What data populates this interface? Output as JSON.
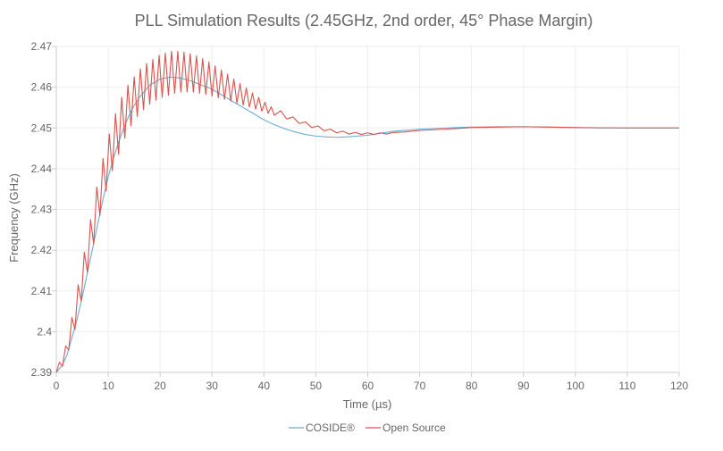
{
  "chart_data": {
    "type": "line",
    "title": "PLL Simulation Results (2.45GHz, 2nd order, 45° Phase Margin)",
    "xlabel": "Time (µs)",
    "ylabel": "Frequency (GHz)",
    "xlim": [
      0,
      120
    ],
    "ylim": [
      2.39,
      2.47
    ],
    "x_ticks": [
      "0",
      "10",
      "20",
      "30",
      "40",
      "50",
      "60",
      "70",
      "80",
      "90",
      "100",
      "110",
      "120"
    ],
    "y_ticks": [
      "2.39",
      "2.4",
      "2.41",
      "2.42",
      "2.43",
      "2.44",
      "2.45",
      "2.46",
      "2.47"
    ],
    "grid": true,
    "legend_position": "bottom",
    "series": [
      {
        "name": "COSIDE®",
        "color": "#6baed6",
        "x": [
          0,
          1,
          2,
          3,
          4,
          5,
          6,
          7,
          8,
          9,
          10,
          11,
          12,
          13,
          14,
          15,
          16,
          18,
          20,
          22,
          24,
          26,
          28,
          30,
          32,
          34,
          36,
          38,
          40,
          42,
          44,
          46,
          48,
          50,
          52,
          54,
          56,
          58,
          60,
          62,
          65,
          70,
          75,
          80,
          85,
          90,
          95,
          100,
          110,
          120
        ],
        "y": [
          2.39,
          2.3915,
          2.394,
          2.3985,
          2.403,
          2.4085,
          2.4145,
          2.4205,
          2.4265,
          2.4325,
          2.438,
          2.4425,
          2.4465,
          2.45,
          2.453,
          2.4555,
          2.4575,
          2.4605,
          2.462,
          2.4625,
          2.4622,
          2.4615,
          2.4605,
          2.4595,
          2.458,
          2.4565,
          2.455,
          2.4535,
          2.452,
          2.4508,
          2.4498,
          2.449,
          2.4484,
          2.448,
          2.4478,
          2.4477,
          2.4478,
          2.448,
          2.4482,
          2.4486,
          2.4492,
          2.4497,
          2.45,
          2.4502,
          2.4503,
          2.4503,
          2.4502,
          2.4501,
          2.45,
          2.45
        ]
      },
      {
        "name": "Open Source",
        "color": "#d9534f",
        "x": [
          0,
          0.6,
          1.2,
          1.8,
          2.4,
          3.0,
          3.6,
          4.2,
          4.8,
          5.4,
          6.0,
          6.6,
          7.2,
          7.8,
          8.4,
          9.0,
          9.6,
          10.2,
          10.8,
          11.4,
          12.0,
          12.6,
          13.2,
          13.8,
          14.4,
          15.0,
          15.6,
          16.2,
          16.8,
          17.4,
          18.0,
          18.6,
          19.2,
          19.8,
          20.4,
          21.0,
          21.6,
          22.2,
          22.8,
          23.4,
          24.0,
          24.6,
          25.2,
          25.8,
          26.4,
          27.0,
          27.6,
          28.2,
          28.8,
          29.4,
          30.0,
          30.6,
          31.2,
          31.8,
          32.4,
          33.0,
          33.6,
          34.2,
          34.8,
          35.4,
          36.0,
          36.6,
          37.2,
          37.8,
          38.4,
          39.0,
          39.6,
          40.2,
          40.8,
          41.4,
          42.0,
          43.2,
          44.4,
          45.6,
          46.8,
          48.0,
          49.2,
          50.4,
          51.6,
          52.8,
          54.0,
          55.2,
          56.4,
          57.6,
          58.8,
          60.0,
          61.2,
          62.4,
          63.6,
          65.0,
          67.0,
          70.0,
          75.0,
          80.0,
          85.0,
          90.0,
          95.0,
          100.0,
          105.0,
          110.0,
          115.0,
          120.0
        ],
        "y": [
          2.39,
          2.3925,
          2.3915,
          2.3965,
          2.3955,
          2.4035,
          2.4005,
          2.4115,
          2.4075,
          2.4195,
          2.4145,
          2.4275,
          2.4215,
          2.4355,
          2.4285,
          2.4425,
          2.4345,
          2.4485,
          2.4395,
          2.4535,
          2.4435,
          2.4575,
          2.4475,
          2.4605,
          2.4505,
          2.4625,
          2.4528,
          2.4645,
          2.4545,
          2.4658,
          2.4558,
          2.4668,
          2.4568,
          2.4678,
          2.4575,
          2.4684,
          2.458,
          2.4688,
          2.4585,
          2.4688,
          2.4588,
          2.4686,
          2.4588,
          2.4682,
          2.4588,
          2.4677,
          2.4585,
          2.467,
          2.4582,
          2.4662,
          2.4578,
          2.4652,
          2.4574,
          2.4642,
          2.457,
          2.4632,
          2.4566,
          2.462,
          2.4561,
          2.4609,
          2.4556,
          2.4598,
          2.4551,
          2.4586,
          2.4546,
          2.4575,
          2.4541,
          2.4563,
          2.4536,
          2.4552,
          2.4531,
          2.4542,
          2.4522,
          2.4527,
          2.4511,
          2.4515,
          2.4501,
          2.4505,
          2.4493,
          2.4497,
          2.4488,
          2.4492,
          2.4485,
          2.4489,
          2.4484,
          2.4488,
          2.4484,
          2.4488,
          2.4485,
          2.4489,
          2.449,
          2.4494,
          2.4497,
          2.4501,
          2.4502,
          2.4503,
          2.4502,
          2.4501,
          2.45,
          2.45,
          2.45,
          2.45
        ]
      }
    ]
  }
}
